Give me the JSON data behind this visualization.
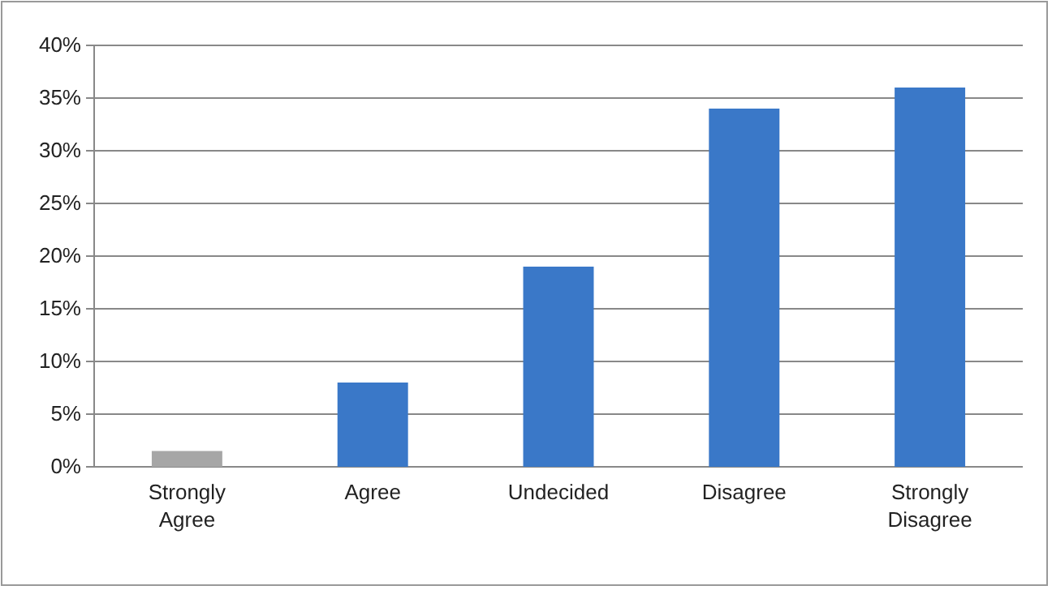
{
  "chart_data": {
    "type": "bar",
    "categories": [
      "Strongly Agree",
      "Agree",
      "Undecided",
      "Disagree",
      "Strongly Disagree"
    ],
    "values": [
      1.5,
      8,
      19,
      34,
      36
    ],
    "colors": [
      "#a6a6a6",
      "#3a78c8",
      "#3a78c8",
      "#3a78c8",
      "#3a78c8"
    ],
    "ylim": [
      0,
      40
    ],
    "yticks": [
      {
        "value": 0,
        "label": "0%"
      },
      {
        "value": 5,
        "label": "5%"
      },
      {
        "value": 10,
        "label": "10%"
      },
      {
        "value": 15,
        "label": "15%"
      },
      {
        "value": 20,
        "label": "20%"
      },
      {
        "value": 25,
        "label": "25%"
      },
      {
        "value": 30,
        "label": "30%"
      },
      {
        "value": 35,
        "label": "35%"
      },
      {
        "value": 40,
        "label": "40%"
      }
    ],
    "grid": "y"
  }
}
